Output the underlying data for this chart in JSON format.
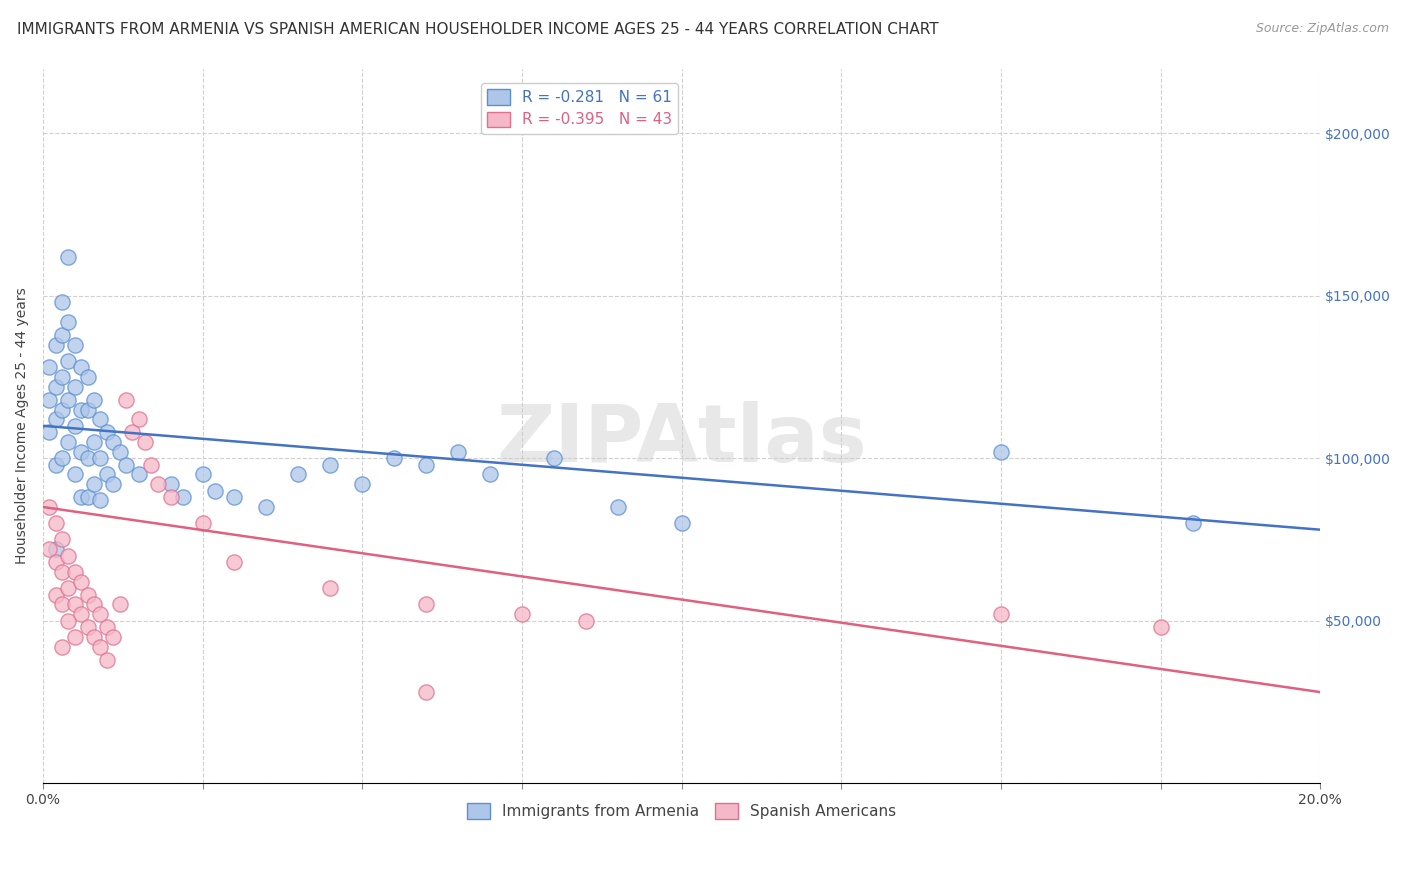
{
  "title": "IMMIGRANTS FROM ARMENIA VS SPANISH AMERICAN HOUSEHOLDER INCOME AGES 25 - 44 YEARS CORRELATION CHART",
  "source": "Source: ZipAtlas.com",
  "ylabel": "Householder Income Ages 25 - 44 years",
  "xmin": 0.0,
  "xmax": 0.2,
  "ymin": 0,
  "ymax": 220000,
  "watermark": "ZIPAtlas",
  "blue_R": "-0.281",
  "blue_N": "61",
  "pink_R": "-0.395",
  "pink_N": "43",
  "blue_color": "#aec6e8",
  "pink_color": "#f4b8c8",
  "blue_edge_color": "#5b8fd4",
  "pink_edge_color": "#e07090",
  "blue_line_color": "#4472c4",
  "pink_line_color": "#e06080",
  "blue_scatter": [
    [
      0.001,
      128000
    ],
    [
      0.001,
      118000
    ],
    [
      0.001,
      108000
    ],
    [
      0.002,
      135000
    ],
    [
      0.002,
      122000
    ],
    [
      0.002,
      112000
    ],
    [
      0.002,
      98000
    ],
    [
      0.003,
      148000
    ],
    [
      0.003,
      138000
    ],
    [
      0.003,
      125000
    ],
    [
      0.003,
      115000
    ],
    [
      0.003,
      100000
    ],
    [
      0.004,
      162000
    ],
    [
      0.004,
      142000
    ],
    [
      0.004,
      130000
    ],
    [
      0.004,
      118000
    ],
    [
      0.004,
      105000
    ],
    [
      0.005,
      135000
    ],
    [
      0.005,
      122000
    ],
    [
      0.005,
      110000
    ],
    [
      0.005,
      95000
    ],
    [
      0.006,
      128000
    ],
    [
      0.006,
      115000
    ],
    [
      0.006,
      102000
    ],
    [
      0.006,
      88000
    ],
    [
      0.007,
      125000
    ],
    [
      0.007,
      115000
    ],
    [
      0.007,
      100000
    ],
    [
      0.007,
      88000
    ],
    [
      0.008,
      118000
    ],
    [
      0.008,
      105000
    ],
    [
      0.008,
      92000
    ],
    [
      0.009,
      112000
    ],
    [
      0.009,
      100000
    ],
    [
      0.009,
      87000
    ],
    [
      0.01,
      108000
    ],
    [
      0.01,
      95000
    ],
    [
      0.011,
      105000
    ],
    [
      0.011,
      92000
    ],
    [
      0.012,
      102000
    ],
    [
      0.013,
      98000
    ],
    [
      0.015,
      95000
    ],
    [
      0.02,
      92000
    ],
    [
      0.022,
      88000
    ],
    [
      0.025,
      95000
    ],
    [
      0.027,
      90000
    ],
    [
      0.03,
      88000
    ],
    [
      0.035,
      85000
    ],
    [
      0.04,
      95000
    ],
    [
      0.045,
      98000
    ],
    [
      0.05,
      92000
    ],
    [
      0.055,
      100000
    ],
    [
      0.06,
      98000
    ],
    [
      0.065,
      102000
    ],
    [
      0.07,
      95000
    ],
    [
      0.08,
      100000
    ],
    [
      0.09,
      85000
    ],
    [
      0.1,
      80000
    ],
    [
      0.15,
      102000
    ],
    [
      0.18,
      80000
    ],
    [
      0.002,
      72000
    ]
  ],
  "pink_scatter": [
    [
      0.001,
      85000
    ],
    [
      0.001,
      72000
    ],
    [
      0.002,
      80000
    ],
    [
      0.002,
      68000
    ],
    [
      0.002,
      58000
    ],
    [
      0.003,
      75000
    ],
    [
      0.003,
      65000
    ],
    [
      0.003,
      55000
    ],
    [
      0.003,
      42000
    ],
    [
      0.004,
      70000
    ],
    [
      0.004,
      60000
    ],
    [
      0.004,
      50000
    ],
    [
      0.005,
      65000
    ],
    [
      0.005,
      55000
    ],
    [
      0.005,
      45000
    ],
    [
      0.006,
      62000
    ],
    [
      0.006,
      52000
    ],
    [
      0.007,
      58000
    ],
    [
      0.007,
      48000
    ],
    [
      0.008,
      55000
    ],
    [
      0.008,
      45000
    ],
    [
      0.009,
      52000
    ],
    [
      0.009,
      42000
    ],
    [
      0.01,
      48000
    ],
    [
      0.01,
      38000
    ],
    [
      0.011,
      45000
    ],
    [
      0.012,
      55000
    ],
    [
      0.013,
      118000
    ],
    [
      0.014,
      108000
    ],
    [
      0.015,
      112000
    ],
    [
      0.016,
      105000
    ],
    [
      0.017,
      98000
    ],
    [
      0.018,
      92000
    ],
    [
      0.02,
      88000
    ],
    [
      0.025,
      80000
    ],
    [
      0.03,
      68000
    ],
    [
      0.045,
      60000
    ],
    [
      0.06,
      28000
    ],
    [
      0.075,
      52000
    ],
    [
      0.085,
      50000
    ],
    [
      0.15,
      52000
    ],
    [
      0.175,
      48000
    ],
    [
      0.06,
      55000
    ]
  ],
  "blue_trendline": [
    110000,
    78000
  ],
  "pink_trendline": [
    85000,
    28000
  ],
  "yticks": [
    0,
    50000,
    100000,
    150000,
    200000
  ],
  "ytick_labels": [
    "",
    "$50,000",
    "$100,000",
    "$150,000",
    "$200,000"
  ],
  "xtick_positions": [
    0.0,
    0.025,
    0.05,
    0.075,
    0.1,
    0.125,
    0.15,
    0.175,
    0.2
  ],
  "grid_color": "#d0d0d0",
  "background_color": "#ffffff",
  "title_fontsize": 11,
  "axis_label_fontsize": 10,
  "tick_fontsize": 10,
  "legend_fontsize": 11
}
